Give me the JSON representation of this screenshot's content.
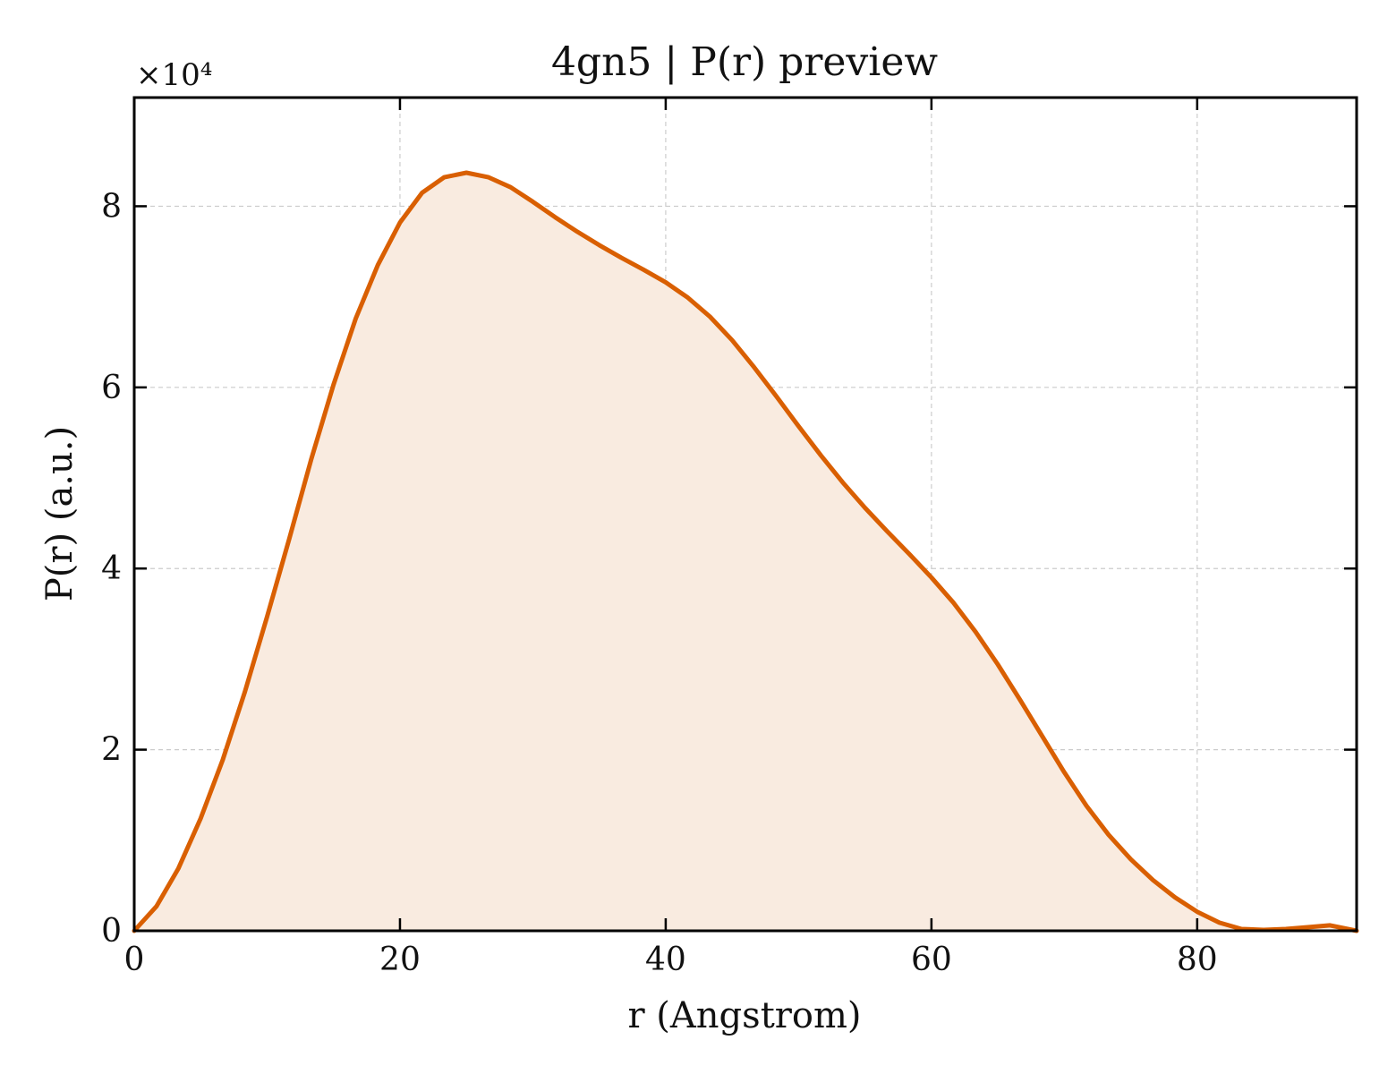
{
  "chart_data": {
    "type": "area",
    "title": "4gn5 | P(r) preview",
    "xlabel": "r (Angstrom)",
    "ylabel": "P(r) (a.u.)",
    "y_multiplier_label": "×10⁴",
    "y_scale_factor": 10000,
    "xlim": [
      0,
      92
    ],
    "ylim": [
      0,
      92000
    ],
    "x_ticks": [
      0,
      20,
      40,
      60,
      80
    ],
    "y_ticks": [
      0,
      20000,
      40000,
      60000,
      80000
    ],
    "x_tick_labels": [
      "0",
      "20",
      "40",
      "60",
      "80"
    ],
    "y_tick_labels": [
      "0",
      "2",
      "4",
      "6",
      "8"
    ],
    "grid": true,
    "line_color": "#d95f02",
    "fill_color": "#f9ebe0",
    "series": [
      {
        "x": [
          0,
          1.67,
          3.33,
          5.0,
          6.67,
          8.33,
          10.0,
          11.67,
          13.33,
          15.0,
          16.67,
          18.33,
          20.0,
          21.67,
          23.33,
          25.0,
          26.67,
          28.33,
          30.0,
          31.67,
          33.33,
          35.0,
          36.67,
          38.33,
          40.0,
          41.67,
          43.33,
          45.0,
          46.67,
          48.33,
          50.0,
          51.67,
          53.33,
          55.0,
          56.67,
          58.33,
          60.0,
          61.67,
          63.33,
          65.0,
          66.67,
          68.33,
          70.0,
          71.67,
          73.33,
          75.0,
          76.67,
          78.33,
          80.0,
          81.67,
          83.33,
          85.0,
          86.67,
          88.33,
          90.0,
          92.0
        ],
        "y": [
          0,
          2700,
          6900,
          12400,
          18900,
          26400,
          34700,
          43300,
          52100,
          60300,
          67600,
          73500,
          78200,
          81500,
          83200,
          83700,
          83200,
          82100,
          80500,
          78800,
          77200,
          75700,
          74300,
          73000,
          71600,
          69900,
          67800,
          65200,
          62200,
          59000,
          55700,
          52500,
          49500,
          46700,
          44100,
          41600,
          39000,
          36200,
          33000,
          29400,
          25500,
          21500,
          17500,
          13800,
          10600,
          7900,
          5600,
          3700,
          2100,
          900,
          200,
          100,
          200,
          400,
          600,
          0
        ]
      }
    ]
  }
}
